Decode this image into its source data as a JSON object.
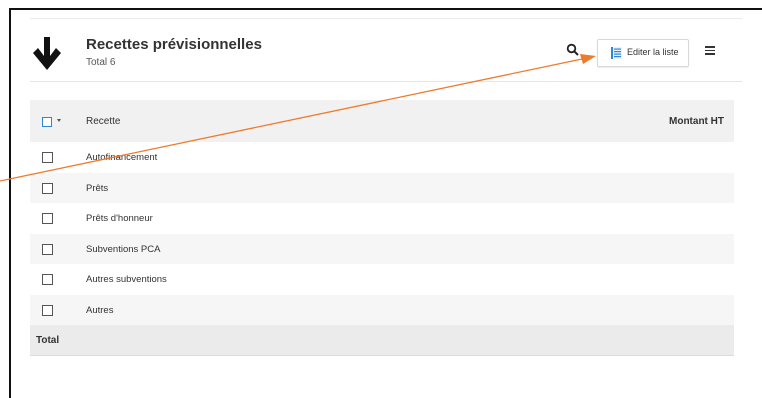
{
  "header": {
    "title": "Recettes prévisionnelles",
    "subtitle": "Total 6",
    "edit_button_label": "Editer la liste"
  },
  "table": {
    "columns": {
      "recette": "Recette",
      "montant": "Montant HT"
    },
    "rows": [
      {
        "label": "Autofinancement"
      },
      {
        "label": "Prêts"
      },
      {
        "label": "Prêts d'honneur"
      },
      {
        "label": "Subventions PCA"
      },
      {
        "label": "Autres subventions"
      },
      {
        "label": "Autres"
      }
    ],
    "total_label": "Total"
  },
  "icons": {
    "main": "arrow-down-icon",
    "search": "search-icon",
    "edit": "list-icon",
    "menu": "hamburger-menu-icon"
  },
  "colors": {
    "accent": "#2f86d9",
    "annotation_arrow": "#ee7a2c",
    "header_bg": "#f1f1f1"
  }
}
